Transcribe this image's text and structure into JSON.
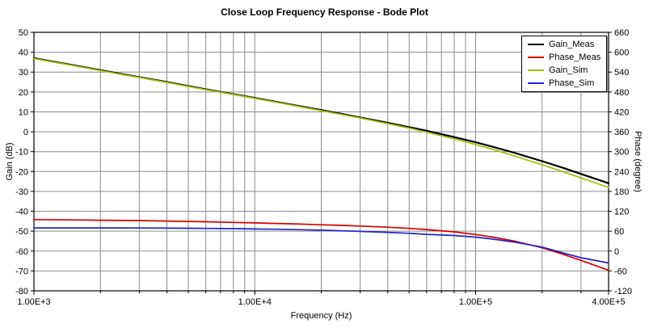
{
  "chart_data": {
    "type": "line",
    "title": "Close Loop Frequency Response - Bode Plot",
    "xlabel": "Frequency (Hz)",
    "ylabel_left": "Gain (dB)",
    "ylabel_right": "Phase (degree)",
    "x_scale": "log",
    "xlim": [
      1000,
      400000
    ],
    "ylim_left": [
      -80,
      50
    ],
    "ylim_right": [
      -120,
      660
    ],
    "grid": true,
    "legend_position": "top-right",
    "x_ticks": [
      {
        "value": 1000,
        "label": "1.00E+3"
      },
      {
        "value": 10000,
        "label": "1.00E+4"
      },
      {
        "value": 100000,
        "label": "1.00E+5"
      },
      {
        "value": 400000,
        "label": "4.00E+5"
      }
    ],
    "y_ticks_left": {
      "values": [
        50,
        40,
        30,
        20,
        10,
        0,
        -10,
        -20,
        -30,
        -40,
        -50,
        -60,
        -70,
        -80
      ],
      "labels": [
        "50",
        "40",
        "30",
        "20",
        "10",
        "0",
        "-10",
        "-20",
        "-30",
        "-40",
        "-50",
        "-60",
        "-70",
        "-80"
      ]
    },
    "y_ticks_right": {
      "values": [
        660,
        600,
        540,
        480,
        420,
        360,
        300,
        240,
        180,
        120,
        60,
        0,
        -60,
        -120
      ],
      "labels": [
        "660",
        "600",
        "540",
        "480",
        "420",
        "360",
        "300",
        "240",
        "180",
        "120",
        "60",
        "0",
        "-60",
        "-120"
      ]
    },
    "colors": {
      "grid": "#8c8c8c",
      "axis": "#000000",
      "gain_meas": "#000000",
      "phase_meas": "#d40000",
      "gain_sim": "#a3bd00",
      "phase_sim": "#2222cc"
    },
    "series": [
      {
        "name": "Gain_Meas",
        "axis": "left",
        "color": "#000000",
        "points": [
          [
            1000,
            37.0
          ],
          [
            1200,
            35.4
          ],
          [
            1500,
            33.5
          ],
          [
            2000,
            31.0
          ],
          [
            2500,
            29.0
          ],
          [
            3000,
            27.5
          ],
          [
            4000,
            25.0
          ],
          [
            5000,
            23.0
          ],
          [
            6000,
            21.4
          ],
          [
            8000,
            18.9
          ],
          [
            10000,
            17.0
          ],
          [
            12000,
            15.4
          ],
          [
            15000,
            13.4
          ],
          [
            20000,
            10.9
          ],
          [
            25000,
            8.9
          ],
          [
            30000,
            7.2
          ],
          [
            40000,
            4.5
          ],
          [
            50000,
            2.3
          ],
          [
            60000,
            0.5
          ],
          [
            80000,
            -2.7
          ],
          [
            100000,
            -5.3
          ],
          [
            120000,
            -7.6
          ],
          [
            150000,
            -10.6
          ],
          [
            200000,
            -14.8
          ],
          [
            250000,
            -18.2
          ],
          [
            300000,
            -21.2
          ],
          [
            400000,
            -25.9
          ]
        ]
      },
      {
        "name": "Phase_Meas",
        "axis": "right",
        "color": "#d40000",
        "points": [
          [
            1000,
            95
          ],
          [
            1500,
            94
          ],
          [
            2000,
            93
          ],
          [
            3000,
            92
          ],
          [
            4000,
            90.5
          ],
          [
            5000,
            89.5
          ],
          [
            6000,
            88.5
          ],
          [
            8000,
            86.5
          ],
          [
            10000,
            85
          ],
          [
            12000,
            83.5
          ],
          [
            15000,
            82
          ],
          [
            20000,
            79.5
          ],
          [
            25000,
            77.5
          ],
          [
            30000,
            75.5
          ],
          [
            40000,
            72
          ],
          [
            50000,
            68.5
          ],
          [
            60000,
            65
          ],
          [
            80000,
            58
          ],
          [
            100000,
            50
          ],
          [
            120000,
            42
          ],
          [
            150000,
            30
          ],
          [
            200000,
            10
          ],
          [
            250000,
            -10
          ],
          [
            300000,
            -28
          ],
          [
            400000,
            -58
          ]
        ]
      },
      {
        "name": "Gain_Sim",
        "axis": "left",
        "color": "#a3bd00",
        "points": [
          [
            1000,
            36.8
          ],
          [
            1200,
            35.2
          ],
          [
            1500,
            33.3
          ],
          [
            2000,
            30.8
          ],
          [
            2500,
            28.8
          ],
          [
            3000,
            27.3
          ],
          [
            4000,
            24.8
          ],
          [
            5000,
            22.8
          ],
          [
            6000,
            21.2
          ],
          [
            8000,
            18.7
          ],
          [
            10000,
            16.8
          ],
          [
            12000,
            15.2
          ],
          [
            15000,
            13.2
          ],
          [
            20000,
            10.6
          ],
          [
            25000,
            8.6
          ],
          [
            30000,
            6.9
          ],
          [
            40000,
            4.1
          ],
          [
            50000,
            1.8
          ],
          [
            60000,
            -0.2
          ],
          [
            80000,
            -3.6
          ],
          [
            100000,
            -6.4
          ],
          [
            120000,
            -8.9
          ],
          [
            150000,
            -12.2
          ],
          [
            200000,
            -16.6
          ],
          [
            250000,
            -20.2
          ],
          [
            300000,
            -23.2
          ],
          [
            400000,
            -28.0
          ]
        ]
      },
      {
        "name": "Phase_Sim",
        "axis": "right",
        "color": "#2222cc",
        "points": [
          [
            1000,
            70
          ],
          [
            1500,
            70
          ],
          [
            2000,
            70
          ],
          [
            3000,
            69.6
          ],
          [
            4000,
            69.2
          ],
          [
            5000,
            68.8
          ],
          [
            6000,
            68.4
          ],
          [
            8000,
            67.6
          ],
          [
            10000,
            66.8
          ],
          [
            12000,
            66
          ],
          [
            15000,
            64.8
          ],
          [
            20000,
            63
          ],
          [
            25000,
            61.2
          ],
          [
            30000,
            59.5
          ],
          [
            40000,
            56.5
          ],
          [
            50000,
            53.5
          ],
          [
            60000,
            50.5
          ],
          [
            80000,
            47
          ],
          [
            100000,
            42
          ],
          [
            120000,
            36
          ],
          [
            150000,
            27
          ],
          [
            200000,
            12
          ],
          [
            250000,
            -6
          ],
          [
            300000,
            -20
          ],
          [
            400000,
            -36
          ]
        ]
      }
    ]
  }
}
